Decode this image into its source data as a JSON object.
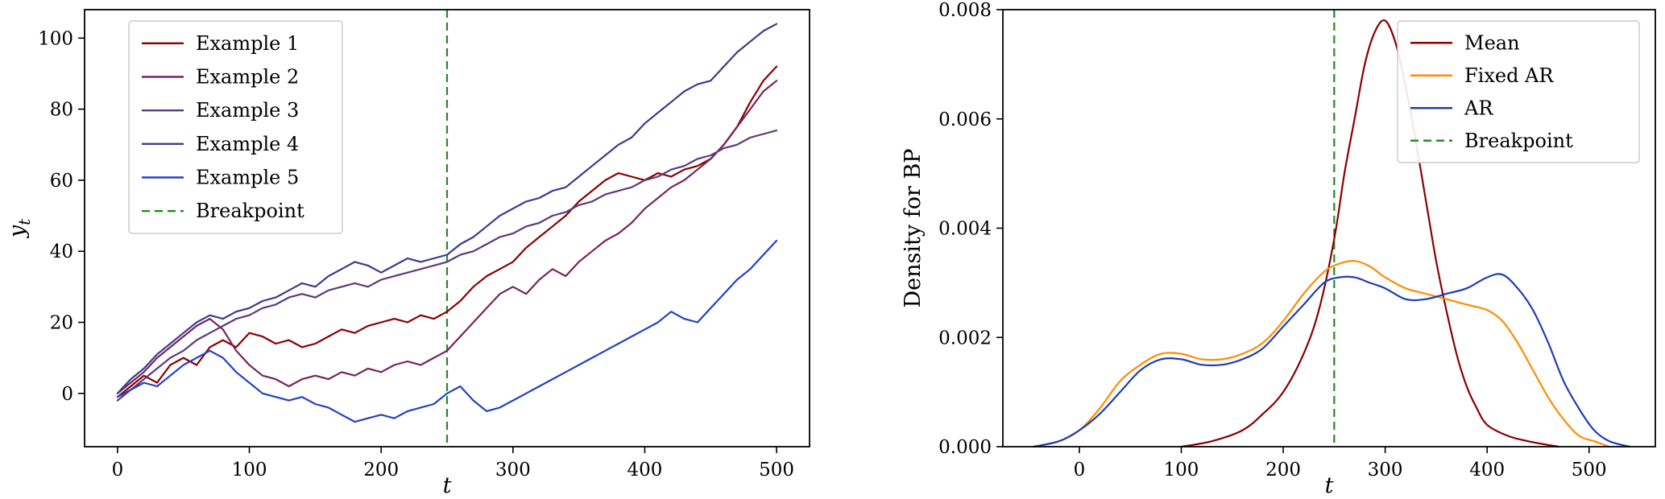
{
  "chart_data": [
    {
      "id": "timeseries-examples",
      "type": "line",
      "title": "",
      "xlabel": {
        "text": "t",
        "italic": true
      },
      "ylabel": {
        "text": "y",
        "sub": "t",
        "italic": true
      },
      "xlim": [
        -25,
        525
      ],
      "ylim": [
        -15,
        108
      ],
      "xticks": [
        0,
        100,
        200,
        300,
        400,
        500
      ],
      "xtick_labels": [
        "0",
        "100",
        "200",
        "300",
        "400",
        "500"
      ],
      "yticks": [
        0,
        20,
        40,
        60,
        80,
        100
      ],
      "ytick_labels": [
        "0",
        "20",
        "40",
        "60",
        "80",
        "100"
      ],
      "grid": false,
      "x": [
        0,
        10,
        20,
        30,
        40,
        50,
        60,
        70,
        80,
        90,
        100,
        110,
        120,
        130,
        140,
        150,
        160,
        170,
        180,
        190,
        200,
        210,
        220,
        230,
        240,
        250,
        260,
        270,
        280,
        290,
        300,
        310,
        320,
        330,
        340,
        350,
        360,
        370,
        380,
        390,
        400,
        410,
        420,
        430,
        440,
        450,
        460,
        470,
        480,
        490,
        500
      ],
      "series": [
        {
          "name": "Example 1",
          "color": "#8b0000",
          "values": [
            -1,
            2,
            5,
            3,
            8,
            10,
            8,
            13,
            15,
            13,
            17,
            16,
            14,
            15,
            13,
            14,
            16,
            18,
            17,
            19,
            20,
            21,
            20,
            22,
            21,
            23,
            26,
            30,
            33,
            35,
            37,
            41,
            44,
            47,
            50,
            54,
            57,
            60,
            62,
            61,
            60,
            62,
            61,
            63,
            64,
            66,
            70,
            75,
            82,
            88,
            92
          ]
        },
        {
          "name": "Example 2",
          "color": "#76245e",
          "values": [
            0,
            3,
            6,
            10,
            13,
            16,
            19,
            21,
            18,
            12,
            8,
            5,
            4,
            2,
            4,
            5,
            4,
            6,
            5,
            7,
            6,
            8,
            9,
            8,
            10,
            12,
            16,
            20,
            24,
            28,
            30,
            28,
            32,
            35,
            33,
            37,
            40,
            43,
            45,
            48,
            52,
            55,
            58,
            60,
            63,
            66,
            70,
            75,
            80,
            85,
            88
          ]
        },
        {
          "name": "Example 3",
          "color": "#5b3a7e",
          "values": [
            -2,
            1,
            4,
            7,
            10,
            12,
            15,
            17,
            19,
            21,
            22,
            24,
            25,
            27,
            28,
            27,
            29,
            30,
            31,
            30,
            32,
            33,
            34,
            35,
            36,
            37,
            39,
            40,
            42,
            44,
            45,
            47,
            48,
            50,
            51,
            53,
            54,
            56,
            57,
            58,
            60,
            61,
            63,
            64,
            66,
            67,
            69,
            70,
            72,
            73,
            74
          ]
        },
        {
          "name": "Example 4",
          "color": "#3c3a8f",
          "values": [
            0,
            4,
            7,
            11,
            14,
            17,
            20,
            22,
            21,
            23,
            24,
            26,
            27,
            29,
            31,
            30,
            33,
            35,
            37,
            36,
            34,
            36,
            38,
            37,
            38,
            39,
            42,
            44,
            47,
            50,
            52,
            54,
            55,
            57,
            58,
            61,
            64,
            67,
            70,
            72,
            76,
            79,
            82,
            85,
            87,
            88,
            92,
            96,
            99,
            102,
            104
          ]
        },
        {
          "name": "Example 5",
          "color": "#2341c6",
          "values": [
            -1,
            1,
            3,
            2,
            5,
            8,
            10,
            12,
            10,
            6,
            3,
            0,
            -1,
            -2,
            -1,
            -3,
            -4,
            -6,
            -8,
            -7,
            -6,
            -7,
            -5,
            -4,
            -3,
            0,
            2,
            -2,
            -5,
            -4,
            -2,
            0,
            2,
            4,
            6,
            8,
            10,
            12,
            14,
            16,
            18,
            20,
            23,
            21,
            20,
            24,
            28,
            32,
            35,
            39,
            43
          ]
        }
      ],
      "breakpoint": {
        "x": 250,
        "color": "#228b22",
        "dash": true,
        "label": "Breakpoint"
      },
      "legend": {
        "position": "upper left",
        "entries": [
          {
            "label": "Example 1",
            "color": "#8b0000",
            "dash": false
          },
          {
            "label": "Example 2",
            "color": "#76245e",
            "dash": false
          },
          {
            "label": "Example 3",
            "color": "#5b3a7e",
            "dash": false
          },
          {
            "label": "Example 4",
            "color": "#3c3a8f",
            "dash": false
          },
          {
            "label": "Example 5",
            "color": "#2341c6",
            "dash": false
          },
          {
            "label": "Breakpoint",
            "color": "#228b22",
            "dash": true
          }
        ]
      }
    },
    {
      "id": "breakpoint-density",
      "type": "line",
      "title": "",
      "xlabel": {
        "text": "t",
        "italic": true
      },
      "ylabel": {
        "text": "Density for BP",
        "italic": false
      },
      "xlim": [
        -75,
        565
      ],
      "ylim": [
        0,
        0.008
      ],
      "xticks": [
        0,
        100,
        200,
        300,
        400,
        500
      ],
      "xtick_labels": [
        "0",
        "100",
        "200",
        "300",
        "400",
        "500"
      ],
      "yticks": [
        0,
        0.002,
        0.004,
        0.006,
        0.008
      ],
      "ytick_labels": [
        "0.000",
        "0.002",
        "0.004",
        "0.006",
        "0.008"
      ],
      "grid": false,
      "series": [
        {
          "name": "Mean",
          "color": "#8b0000",
          "smooth": true,
          "points": [
            [
              100,
              0
            ],
            [
              130,
              0.0001
            ],
            [
              160,
              0.0003
            ],
            [
              180,
              0.0006
            ],
            [
              200,
              0.001
            ],
            [
              220,
              0.0017
            ],
            [
              235,
              0.0025
            ],
            [
              250,
              0.0038
            ],
            [
              260,
              0.005
            ],
            [
              270,
              0.006
            ],
            [
              280,
              0.007
            ],
            [
              290,
              0.0076
            ],
            [
              300,
              0.0078
            ],
            [
              310,
              0.0074
            ],
            [
              320,
              0.0066
            ],
            [
              330,
              0.0056
            ],
            [
              340,
              0.0045
            ],
            [
              350,
              0.0034
            ],
            [
              360,
              0.0025
            ],
            [
              370,
              0.0017
            ],
            [
              380,
              0.0011
            ],
            [
              390,
              0.0007
            ],
            [
              400,
              0.0004
            ],
            [
              420,
              0.0002
            ],
            [
              440,
              0.0001
            ],
            [
              470,
              0
            ]
          ]
        },
        {
          "name": "Fixed AR",
          "color": "#ff8c00",
          "smooth": true,
          "points": [
            [
              -45,
              0
            ],
            [
              -20,
              0.0001
            ],
            [
              0,
              0.0003
            ],
            [
              20,
              0.0007
            ],
            [
              40,
              0.0012
            ],
            [
              60,
              0.0015
            ],
            [
              80,
              0.0017
            ],
            [
              100,
              0.0017
            ],
            [
              120,
              0.0016
            ],
            [
              140,
              0.0016
            ],
            [
              160,
              0.0017
            ],
            [
              180,
              0.0019
            ],
            [
              200,
              0.0023
            ],
            [
              220,
              0.0028
            ],
            [
              240,
              0.0032
            ],
            [
              255,
              0.00335
            ],
            [
              270,
              0.0034
            ],
            [
              285,
              0.0033
            ],
            [
              300,
              0.0031
            ],
            [
              320,
              0.0029
            ],
            [
              340,
              0.0028
            ],
            [
              360,
              0.0027
            ],
            [
              380,
              0.0026
            ],
            [
              400,
              0.0025
            ],
            [
              415,
              0.0023
            ],
            [
              430,
              0.0019
            ],
            [
              445,
              0.0014
            ],
            [
              460,
              0.0009
            ],
            [
              475,
              0.0005
            ],
            [
              490,
              0.0002
            ],
            [
              505,
              0.0001
            ],
            [
              520,
              0
            ]
          ]
        },
        {
          "name": "AR",
          "color": "#1f3db4",
          "smooth": true,
          "points": [
            [
              -45,
              0
            ],
            [
              -20,
              0.0001
            ],
            [
              0,
              0.0003
            ],
            [
              20,
              0.0006
            ],
            [
              40,
              0.001
            ],
            [
              60,
              0.0014
            ],
            [
              80,
              0.0016
            ],
            [
              100,
              0.0016
            ],
            [
              120,
              0.0015
            ],
            [
              140,
              0.0015
            ],
            [
              160,
              0.0016
            ],
            [
              180,
              0.0018
            ],
            [
              200,
              0.0022
            ],
            [
              220,
              0.0026
            ],
            [
              240,
              0.003
            ],
            [
              255,
              0.0031
            ],
            [
              270,
              0.0031
            ],
            [
              285,
              0.003
            ],
            [
              300,
              0.0029
            ],
            [
              320,
              0.0027
            ],
            [
              340,
              0.0027
            ],
            [
              360,
              0.0028
            ],
            [
              380,
              0.0029
            ],
            [
              400,
              0.0031
            ],
            [
              415,
              0.00315
            ],
            [
              430,
              0.0029
            ],
            [
              445,
              0.0025
            ],
            [
              460,
              0.0019
            ],
            [
              475,
              0.0012
            ],
            [
              490,
              0.0007
            ],
            [
              505,
              0.0003
            ],
            [
              520,
              0.0001
            ],
            [
              540,
              0
            ]
          ]
        }
      ],
      "breakpoint": {
        "x": 250,
        "color": "#228b22",
        "dash": true,
        "label": "Breakpoint"
      },
      "legend": {
        "position": "upper right",
        "entries": [
          {
            "label": "Mean",
            "color": "#8b0000",
            "dash": false
          },
          {
            "label": "Fixed AR",
            "color": "#ff8c00",
            "dash": false
          },
          {
            "label": "AR",
            "color": "#1f3db4",
            "dash": false
          },
          {
            "label": "Breakpoint",
            "color": "#228b22",
            "dash": true
          }
        ]
      }
    }
  ],
  "style": {
    "background": "#ffffff",
    "spine_color": "#000000",
    "legend_edge_color": "#cccccc"
  }
}
